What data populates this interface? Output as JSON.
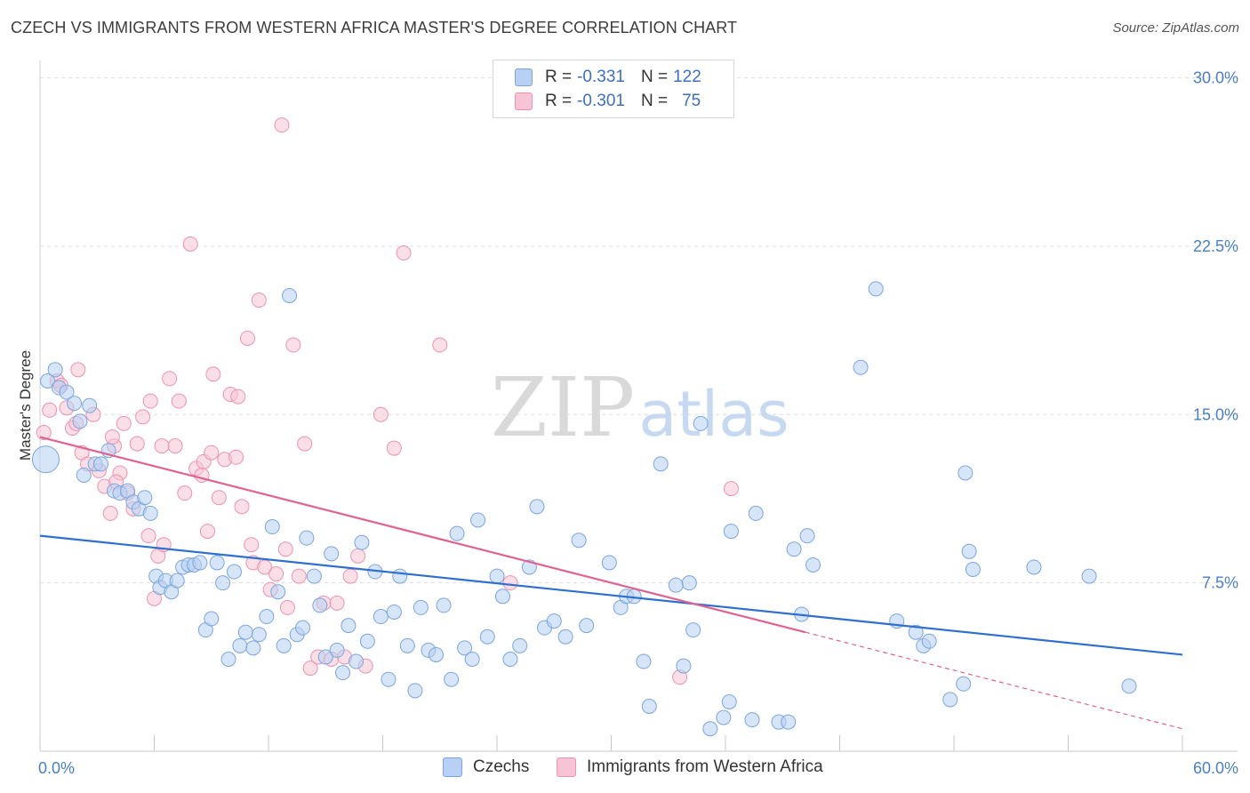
{
  "title": "CZECH VS IMMIGRANTS FROM WESTERN AFRICA MASTER'S DEGREE CORRELATION CHART",
  "source": "Source: ZipAtlas.com",
  "watermark": {
    "zip": "ZIP",
    "atlas": "atlas"
  },
  "legend": {
    "r_label": "R =",
    "n_label": "N =",
    "entries": [
      {
        "r": "-0.331",
        "n": "122"
      },
      {
        "r": "-0.301",
        "n": "75"
      }
    ]
  },
  "bottom_legend": [
    "Czechs",
    "Immigrants from Western Africa"
  ],
  "colors": {
    "blue_fill": "#b7d0f3",
    "blue_stroke": "#7ba5df",
    "blue_line": "#2f6fd0",
    "pink_fill": "#f7c4d3",
    "pink_stroke": "#eb93b0",
    "pink_line": "#e0628e",
    "tick": "#4a7fc8",
    "grid": "#dcdcdc"
  },
  "chart_data": {
    "type": "scatter",
    "title": "CZECH VS IMMIGRANTS FROM WESTERN AFRICA MASTER'S DEGREE CORRELATION CHART",
    "xlabel": "",
    "ylabel": "Master's Degree",
    "xlim": [
      0,
      60
    ],
    "ylim": [
      0,
      30.5
    ],
    "x_tick_labels": [
      "0.0%",
      "60.0%"
    ],
    "y_ticks": [
      7.5,
      15.0,
      22.5,
      30.0
    ],
    "y_tick_labels": [
      "7.5%",
      "15.0%",
      "22.5%",
      "30.0%"
    ],
    "grid": true,
    "series": [
      {
        "name": "Czechs",
        "r": -0.331,
        "n": 122,
        "trend": {
          "x": [
            0,
            60
          ],
          "y": [
            9.6,
            4.3
          ],
          "style": "solid"
        },
        "points": [
          [
            0.3,
            13.0
          ],
          [
            0.4,
            16.5
          ],
          [
            0.8,
            17.0
          ],
          [
            1.0,
            16.2
          ],
          [
            1.4,
            16.0
          ],
          [
            1.8,
            15.5
          ],
          [
            2.1,
            14.7
          ],
          [
            2.3,
            12.3
          ],
          [
            2.6,
            15.4
          ],
          [
            2.9,
            12.8
          ],
          [
            3.2,
            12.8
          ],
          [
            3.6,
            13.4
          ],
          [
            3.9,
            11.6
          ],
          [
            4.2,
            11.5
          ],
          [
            4.6,
            11.6
          ],
          [
            4.9,
            11.1
          ],
          [
            5.2,
            10.8
          ],
          [
            5.5,
            11.3
          ],
          [
            5.8,
            10.6
          ],
          [
            6.1,
            7.8
          ],
          [
            6.3,
            7.3
          ],
          [
            6.6,
            7.6
          ],
          [
            6.9,
            7.1
          ],
          [
            7.2,
            7.6
          ],
          [
            7.5,
            8.2
          ],
          [
            7.8,
            8.3
          ],
          [
            8.1,
            8.3
          ],
          [
            8.4,
            8.4
          ],
          [
            8.7,
            5.4
          ],
          [
            9.0,
            5.9
          ],
          [
            9.3,
            8.4
          ],
          [
            9.6,
            7.5
          ],
          [
            9.9,
            4.1
          ],
          [
            10.2,
            8.0
          ],
          [
            10.5,
            4.7
          ],
          [
            10.8,
            5.3
          ],
          [
            11.2,
            4.6
          ],
          [
            11.5,
            5.2
          ],
          [
            11.9,
            6.0
          ],
          [
            12.2,
            10.0
          ],
          [
            12.5,
            7.1
          ],
          [
            12.8,
            4.7
          ],
          [
            13.1,
            20.3
          ],
          [
            13.5,
            5.2
          ],
          [
            13.8,
            5.5
          ],
          [
            14.0,
            9.5
          ],
          [
            14.4,
            7.8
          ],
          [
            14.7,
            6.5
          ],
          [
            15.0,
            4.2
          ],
          [
            15.3,
            8.8
          ],
          [
            15.6,
            4.5
          ],
          [
            15.9,
            3.5
          ],
          [
            16.2,
            5.6
          ],
          [
            16.6,
            4.0
          ],
          [
            16.9,
            9.3
          ],
          [
            17.2,
            4.9
          ],
          [
            17.6,
            8.0
          ],
          [
            17.9,
            6.0
          ],
          [
            18.3,
            3.2
          ],
          [
            18.6,
            6.2
          ],
          [
            18.9,
            7.8
          ],
          [
            19.3,
            4.7
          ],
          [
            19.7,
            2.7
          ],
          [
            20.0,
            6.4
          ],
          [
            20.4,
            4.5
          ],
          [
            20.8,
            4.3
          ],
          [
            21.2,
            6.5
          ],
          [
            21.6,
            3.2
          ],
          [
            21.9,
            9.7
          ],
          [
            22.3,
            4.6
          ],
          [
            22.7,
            4.1
          ],
          [
            23.0,
            10.3
          ],
          [
            23.5,
            5.1
          ],
          [
            24.0,
            7.8
          ],
          [
            24.3,
            6.9
          ],
          [
            24.7,
            4.1
          ],
          [
            25.2,
            4.7
          ],
          [
            25.7,
            8.2
          ],
          [
            26.1,
            10.9
          ],
          [
            26.5,
            5.5
          ],
          [
            27.0,
            5.8
          ],
          [
            27.6,
            5.1
          ],
          [
            28.3,
            9.4
          ],
          [
            28.7,
            5.6
          ],
          [
            29.9,
            8.4
          ],
          [
            30.5,
            6.4
          ],
          [
            30.8,
            6.9
          ],
          [
            31.2,
            6.9
          ],
          [
            31.7,
            4.0
          ],
          [
            32.0,
            2.0
          ],
          [
            32.6,
            12.8
          ],
          [
            33.4,
            7.4
          ],
          [
            33.8,
            3.8
          ],
          [
            34.1,
            7.5
          ],
          [
            34.3,
            5.4
          ],
          [
            34.7,
            14.6
          ],
          [
            35.2,
            1.0
          ],
          [
            35.9,
            1.5
          ],
          [
            36.2,
            2.2
          ],
          [
            36.3,
            9.8
          ],
          [
            37.4,
            1.4
          ],
          [
            37.6,
            10.6
          ],
          [
            38.8,
            1.3
          ],
          [
            39.3,
            1.3
          ],
          [
            39.6,
            9.0
          ],
          [
            40.0,
            6.1
          ],
          [
            40.3,
            9.6
          ],
          [
            40.6,
            8.3
          ],
          [
            43.1,
            17.1
          ],
          [
            43.9,
            20.6
          ],
          [
            45.0,
            5.8
          ],
          [
            46.0,
            5.3
          ],
          [
            46.4,
            4.7
          ],
          [
            46.7,
            4.9
          ],
          [
            47.8,
            2.3
          ],
          [
            48.5,
            3.0
          ],
          [
            48.6,
            12.4
          ],
          [
            48.8,
            8.9
          ],
          [
            49.0,
            8.1
          ],
          [
            52.2,
            8.2
          ],
          [
            55.1,
            7.8
          ],
          [
            57.2,
            2.9
          ]
        ]
      },
      {
        "name": "Immigrants from Western Africa",
        "r": -0.301,
        "n": 75,
        "trend": {
          "x": [
            0,
            40.2
          ],
          "y": [
            14.0,
            5.3
          ],
          "style": "solid",
          "dashed_extension": {
            "x": [
              40.2,
              60
            ],
            "y": [
              5.3,
              1.0
            ]
          }
        },
        "points": [
          [
            0.2,
            14.2
          ],
          [
            0.5,
            15.2
          ],
          [
            0.9,
            16.5
          ],
          [
            1.1,
            16.3
          ],
          [
            1.4,
            15.3
          ],
          [
            1.7,
            14.4
          ],
          [
            1.9,
            14.6
          ],
          [
            2.2,
            13.3
          ],
          [
            2.5,
            12.8
          ],
          [
            2.8,
            15.0
          ],
          [
            3.1,
            12.5
          ],
          [
            3.4,
            11.8
          ],
          [
            3.7,
            10.6
          ],
          [
            3.9,
            13.6
          ],
          [
            4.2,
            12.4
          ],
          [
            4.4,
            14.6
          ],
          [
            4.6,
            11.5
          ],
          [
            4.9,
            10.8
          ],
          [
            5.1,
            13.7
          ],
          [
            5.4,
            14.9
          ],
          [
            5.7,
            9.6
          ],
          [
            6.0,
            6.8
          ],
          [
            6.2,
            8.7
          ],
          [
            6.5,
            9.2
          ],
          [
            6.8,
            16.6
          ],
          [
            7.1,
            13.6
          ],
          [
            7.3,
            15.6
          ],
          [
            7.6,
            11.5
          ],
          [
            7.9,
            22.6
          ],
          [
            8.2,
            12.6
          ],
          [
            8.5,
            12.3
          ],
          [
            8.8,
            9.8
          ],
          [
            9.1,
            16.8
          ],
          [
            9.4,
            11.3
          ],
          [
            9.7,
            13.0
          ],
          [
            10.0,
            15.9
          ],
          [
            10.3,
            13.1
          ],
          [
            10.6,
            10.9
          ],
          [
            10.9,
            18.4
          ],
          [
            11.2,
            8.4
          ],
          [
            11.5,
            20.1
          ],
          [
            11.8,
            8.2
          ],
          [
            12.1,
            7.2
          ],
          [
            12.4,
            7.9
          ],
          [
            12.7,
            27.9
          ],
          [
            13.0,
            6.4
          ],
          [
            13.3,
            18.1
          ],
          [
            13.6,
            7.8
          ],
          [
            13.9,
            13.7
          ],
          [
            14.2,
            3.7
          ],
          [
            14.6,
            4.2
          ],
          [
            14.9,
            6.6
          ],
          [
            15.3,
            4.1
          ],
          [
            15.6,
            6.6
          ],
          [
            16.0,
            4.2
          ],
          [
            16.3,
            7.8
          ],
          [
            16.7,
            8.7
          ],
          [
            17.1,
            3.8
          ],
          [
            17.9,
            15.0
          ],
          [
            18.6,
            13.5
          ],
          [
            19.1,
            22.2
          ],
          [
            21.0,
            18.1
          ],
          [
            3.8,
            14.0
          ],
          [
            24.7,
            7.5
          ],
          [
            33.6,
            3.3
          ],
          [
            36.3,
            11.7
          ],
          [
            2.0,
            17.0
          ],
          [
            5.8,
            15.6
          ],
          [
            8.6,
            12.9
          ],
          [
            10.4,
            15.8
          ],
          [
            12.9,
            9.0
          ],
          [
            6.4,
            13.6
          ],
          [
            9.0,
            13.3
          ],
          [
            11.1,
            9.2
          ],
          [
            4.0,
            12.0
          ]
        ]
      }
    ]
  }
}
